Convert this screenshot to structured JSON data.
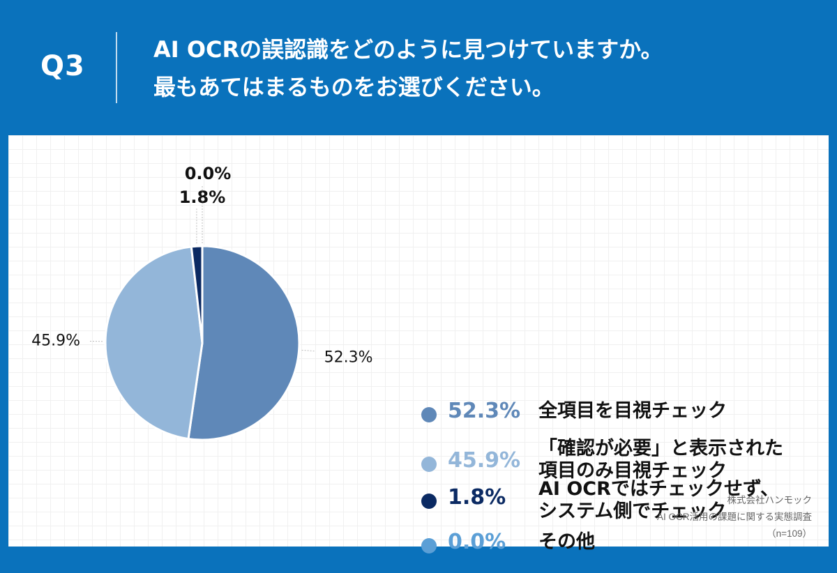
{
  "header": {
    "question_number": "Q3",
    "question_line1": "AI OCRの誤認識をどのように見つけていますか。",
    "question_line2": "最もあてはまるものをお選びください。"
  },
  "chart_data": {
    "type": "pie",
    "slices": [
      {
        "label": "全項目を目視チェック",
        "value": 52.3,
        "value_label": "52.3%",
        "color": "#5f88b8"
      },
      {
        "label": "「確認が必要」と表示された\n項目のみ目視チェック",
        "value": 45.9,
        "value_label": "45.9%",
        "color": "#93b6d9"
      },
      {
        "label": "AI OCRではチェックせず、\nシステム側でチェック",
        "value": 1.8,
        "value_label": "1.8%",
        "color": "#0b2a63"
      },
      {
        "label": "その他",
        "value": 0.0,
        "value_label": "0.0%",
        "color": "#5b9fd6"
      }
    ],
    "legend_placement": "right"
  },
  "source": {
    "company": "株式会社ハンモック",
    "survey": "AI OCR活用の課題に関する実態調査",
    "sample": "（n=109）"
  }
}
